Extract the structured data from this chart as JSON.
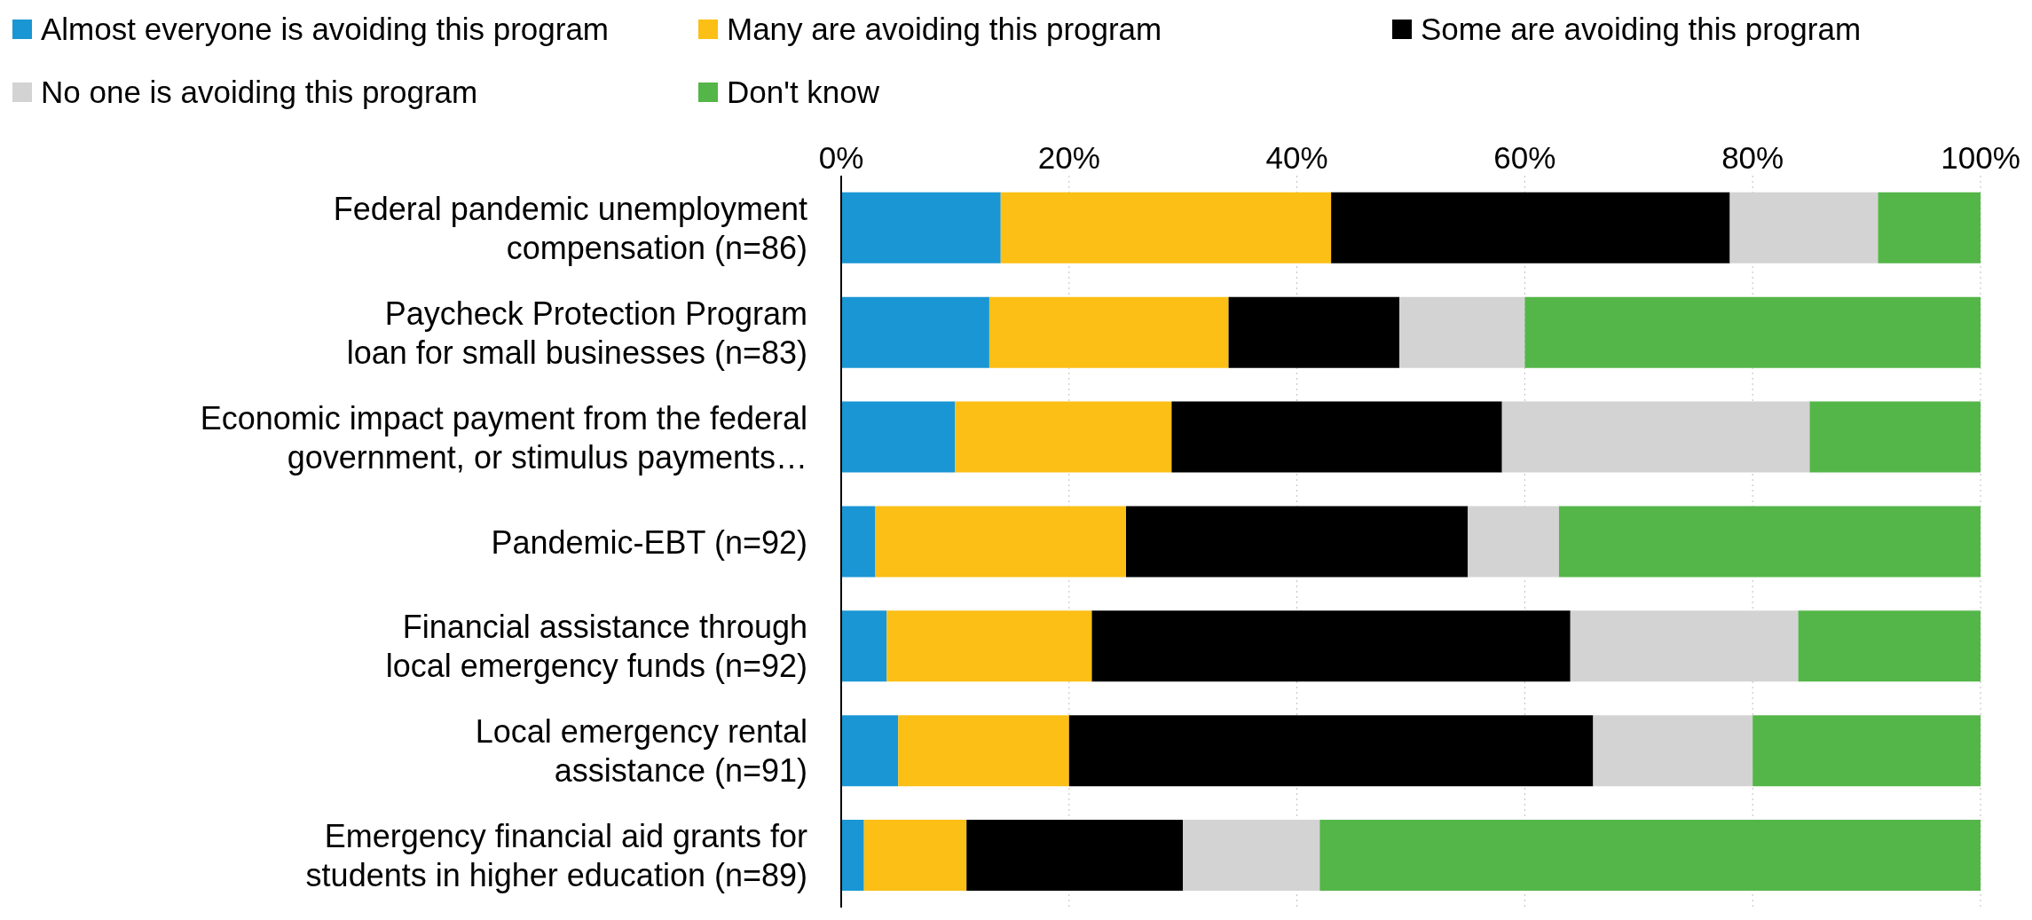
{
  "chart_data": {
    "type": "bar",
    "orientation": "horizontal",
    "stacked": true,
    "categories": [
      "Federal pandemic unemployment compensation (n=86)",
      "Paycheck Protection Program loan for small businesses (n=83)",
      "Economic impact payment from the federal government, or stimulus payments…",
      "Pandemic-EBT (n=92)",
      "Financial assistance through local emergency funds (n=92)",
      "Local emergency rental assistance (n=91)",
      "Emergency financial aid grants for students in higher education (n=89)"
    ],
    "series": [
      {
        "name": "Almost everyone is avoiding this program",
        "color": "#1a96d4",
        "values": [
          14,
          13,
          10,
          3,
          4,
          5,
          2
        ]
      },
      {
        "name": "Many are avoiding this program",
        "color": "#fbbf15",
        "values": [
          29,
          21,
          19,
          22,
          18,
          15,
          9
        ]
      },
      {
        "name": "Some are avoiding this program",
        "color": "#000000",
        "values": [
          35,
          15,
          29,
          30,
          42,
          46,
          19
        ]
      },
      {
        "name": "No one is avoiding this program",
        "color": "#d3d3d3",
        "values": [
          13,
          11,
          27,
          8,
          20,
          14,
          12
        ]
      },
      {
        "name": "Don't know",
        "color": "#54b648",
        "values": [
          9,
          40,
          15,
          37,
          16,
          20,
          58
        ]
      }
    ],
    "xlim": [
      0,
      100
    ],
    "xticks": [
      {
        "value": 0,
        "label": "0%"
      },
      {
        "value": 20,
        "label": "20%"
      },
      {
        "value": 40,
        "label": "40%"
      },
      {
        "value": 60,
        "label": "60%"
      },
      {
        "value": 80,
        "label": "80%"
      },
      {
        "value": 100,
        "label": "100%"
      }
    ],
    "grid": "x",
    "legend": "top left"
  }
}
